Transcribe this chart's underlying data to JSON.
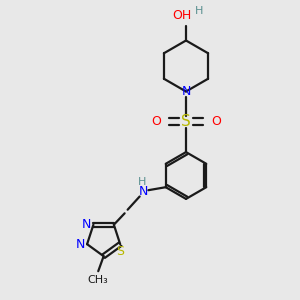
{
  "bg_color": "#e8e8e8",
  "bond_color": "#1a1a1a",
  "N_color": "#0000ff",
  "O_color": "#ff0000",
  "S_color": "#b8b800",
  "H_color": "#5a9090",
  "lw": 1.6,
  "figsize": [
    3.0,
    3.0
  ],
  "dpi": 100,
  "xlim": [
    0,
    10
  ],
  "ylim": [
    0,
    10
  ]
}
